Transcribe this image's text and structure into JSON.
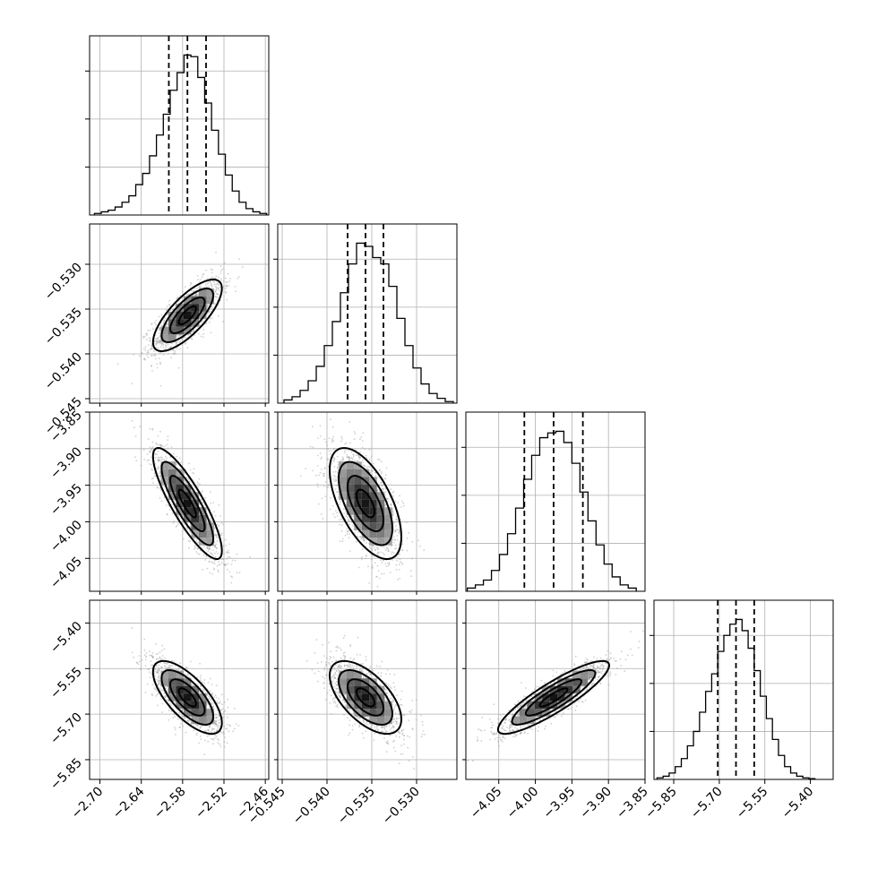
{
  "chart_data": {
    "type": "corner",
    "title": "",
    "parameters": [
      {
        "index": 0,
        "range": [
          -2.715,
          -2.455
        ],
        "ticks": [
          -2.7,
          -2.64,
          -2.58,
          -2.52,
          -2.46
        ],
        "tick_labels": [
          "−2.70",
          "−2.64",
          "−2.58",
          "−2.52",
          "−2.46"
        ],
        "quantiles": [
          -2.6,
          -2.573,
          -2.546
        ],
        "histogram": {
          "bin_edges": [
            -2.708,
            -2.698,
            -2.688,
            -2.678,
            -2.668,
            -2.658,
            -2.648,
            -2.638,
            -2.628,
            -2.618,
            -2.608,
            -2.598,
            -2.588,
            -2.578,
            -2.568,
            -2.558,
            -2.548,
            -2.538,
            -2.528,
            -2.518,
            -2.508,
            -2.498,
            -2.488,
            -2.478,
            -2.468,
            -2.458
          ],
          "heights": [
            0.01,
            0.02,
            0.03,
            0.05,
            0.08,
            0.12,
            0.19,
            0.26,
            0.37,
            0.5,
            0.63,
            0.78,
            0.89,
            1.0,
            0.99,
            0.86,
            0.7,
            0.53,
            0.38,
            0.25,
            0.15,
            0.08,
            0.04,
            0.02,
            0.01
          ]
        }
      },
      {
        "index": 1,
        "range": [
          -0.5455,
          -0.5255
        ],
        "ticks": [
          -0.545,
          -0.54,
          -0.535,
          -0.53
        ],
        "tick_labels": [
          "−0.545",
          "−0.540",
          "−0.535",
          "−0.530"
        ],
        "quantiles": [
          -0.5377,
          -0.5357,
          -0.5337
        ],
        "histogram": {
          "bin_edges": [
            -0.5448,
            -0.5439,
            -0.543,
            -0.5421,
            -0.5412,
            -0.5403,
            -0.5394,
            -0.5385,
            -0.5376,
            -0.5367,
            -0.5358,
            -0.5349,
            -0.534,
            -0.5331,
            -0.5322,
            -0.5313,
            -0.5304,
            -0.5295,
            -0.5286,
            -0.5277,
            -0.5268,
            -0.5259
          ],
          "heights": [
            0.02,
            0.04,
            0.08,
            0.14,
            0.23,
            0.36,
            0.51,
            0.69,
            0.87,
            1.0,
            0.98,
            0.91,
            0.87,
            0.73,
            0.53,
            0.36,
            0.22,
            0.12,
            0.06,
            0.03,
            0.01
          ]
        }
      },
      {
        "index": 2,
        "range": [
          -4.095,
          -3.85
        ],
        "ticks": [
          -4.05,
          -4.0,
          -3.95,
          -3.9,
          -3.85
        ],
        "tick_labels": [
          "−4.05",
          "−4.00",
          "−3.95",
          "−3.90",
          "−3.85"
        ],
        "quantiles": [
          -4.015,
          -3.975,
          -3.935
        ],
        "histogram": {
          "bin_edges": [
            -4.093,
            -4.082,
            -4.071,
            -4.06,
            -4.049,
            -4.038,
            -4.027,
            -4.016,
            -4.005,
            -3.994,
            -3.983,
            -3.972,
            -3.961,
            -3.95,
            -3.939,
            -3.928,
            -3.917,
            -3.906,
            -3.895,
            -3.884,
            -3.873,
            -3.862
          ],
          "heights": [
            0.02,
            0.04,
            0.07,
            0.13,
            0.23,
            0.36,
            0.52,
            0.7,
            0.85,
            0.96,
            0.99,
            1.0,
            0.93,
            0.8,
            0.62,
            0.44,
            0.29,
            0.17,
            0.09,
            0.04,
            0.02
          ]
        }
      },
      {
        "index": 3,
        "range": [
          -5.915,
          -5.325
        ],
        "ticks": [
          -5.85,
          -5.7,
          -5.55,
          -5.4
        ],
        "tick_labels": [
          "−5.85",
          "−5.70",
          "−5.55",
          "−5.40"
        ],
        "quantiles": [
          -5.705,
          -5.645,
          -5.585
        ],
        "histogram": {
          "bin_edges": [
            -5.905,
            -5.885,
            -5.865,
            -5.845,
            -5.825,
            -5.805,
            -5.785,
            -5.765,
            -5.745,
            -5.725,
            -5.705,
            -5.685,
            -5.665,
            -5.645,
            -5.625,
            -5.605,
            -5.585,
            -5.565,
            -5.545,
            -5.525,
            -5.505,
            -5.485,
            -5.465,
            -5.445,
            -5.425,
            -5.405,
            -5.385
          ],
          "heights": [
            0.01,
            0.02,
            0.04,
            0.08,
            0.13,
            0.21,
            0.3,
            0.42,
            0.55,
            0.66,
            0.8,
            0.9,
            0.97,
            1.0,
            0.93,
            0.82,
            0.68,
            0.52,
            0.38,
            0.25,
            0.15,
            0.08,
            0.04,
            0.02,
            0.01,
            0.005
          ]
        }
      }
    ],
    "pairs": [
      {
        "x": 0,
        "y": 1,
        "mean": [
          -2.573,
          -0.5357
        ],
        "std": [
          0.025,
          0.002
        ],
        "rho": 0.75
      },
      {
        "x": 0,
        "y": 2,
        "mean": [
          -2.573,
          -3.975
        ],
        "std": [
          0.025,
          0.038
        ],
        "rho": -0.85
      },
      {
        "x": 1,
        "y": 2,
        "mean": [
          -0.5357,
          -3.975
        ],
        "std": [
          0.002,
          0.038
        ],
        "rho": -0.6
      },
      {
        "x": 0,
        "y": 3,
        "mean": [
          -2.573,
          -5.645
        ],
        "std": [
          0.025,
          0.06
        ],
        "rho": -0.7
      },
      {
        "x": 1,
        "y": 3,
        "mean": [
          -0.5357,
          -5.645
        ],
        "std": [
          0.002,
          0.06
        ],
        "rho": -0.6
      },
      {
        "x": 2,
        "y": 3,
        "mean": [
          -3.975,
          -5.645
        ],
        "std": [
          0.038,
          0.06
        ],
        "rho": 0.88
      }
    ],
    "contour_levels_sigma": [
      0.5,
      1.0,
      1.5,
      2.0
    ],
    "grid": true,
    "legend": "none"
  }
}
